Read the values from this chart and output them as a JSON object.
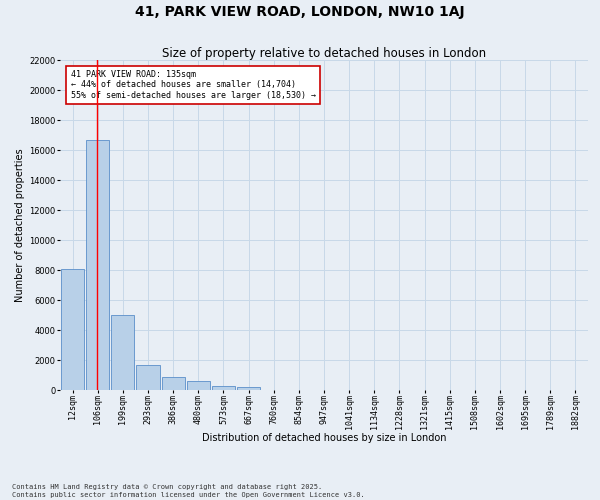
{
  "title1": "41, PARK VIEW ROAD, LONDON, NW10 1AJ",
  "title2": "Size of property relative to detached houses in London",
  "xlabel": "Distribution of detached houses by size in London",
  "ylabel": "Number of detached properties",
  "categories": [
    "12sqm",
    "106sqm",
    "199sqm",
    "293sqm",
    "386sqm",
    "480sqm",
    "573sqm",
    "667sqm",
    "760sqm",
    "854sqm",
    "947sqm",
    "1041sqm",
    "1134sqm",
    "1228sqm",
    "1321sqm",
    "1415sqm",
    "1508sqm",
    "1602sqm",
    "1695sqm",
    "1789sqm",
    "1882sqm"
  ],
  "values": [
    8100,
    16700,
    5000,
    1700,
    900,
    600,
    300,
    200,
    0,
    0,
    0,
    0,
    0,
    0,
    0,
    0,
    0,
    0,
    0,
    0,
    0
  ],
  "bar_color": "#b8d0e8",
  "bar_edge_color": "#5b8fc9",
  "grid_color": "#c8d8e8",
  "background_color": "#e8eef5",
  "red_line_x": 0.97,
  "annotation_text": "41 PARK VIEW ROAD: 135sqm\n← 44% of detached houses are smaller (14,704)\n55% of semi-detached houses are larger (18,530) →",
  "annotation_box_color": "#ffffff",
  "annotation_box_edge": "#cc0000",
  "ylim": [
    0,
    22000
  ],
  "yticks": [
    0,
    2000,
    4000,
    6000,
    8000,
    10000,
    12000,
    14000,
    16000,
    18000,
    20000,
    22000
  ],
  "footer1": "Contains HM Land Registry data © Crown copyright and database right 2025.",
  "footer2": "Contains public sector information licensed under the Open Government Licence v3.0.",
  "title_fontsize": 10,
  "subtitle_fontsize": 8.5,
  "axis_label_fontsize": 7,
  "tick_fontsize": 6,
  "annotation_fontsize": 6
}
